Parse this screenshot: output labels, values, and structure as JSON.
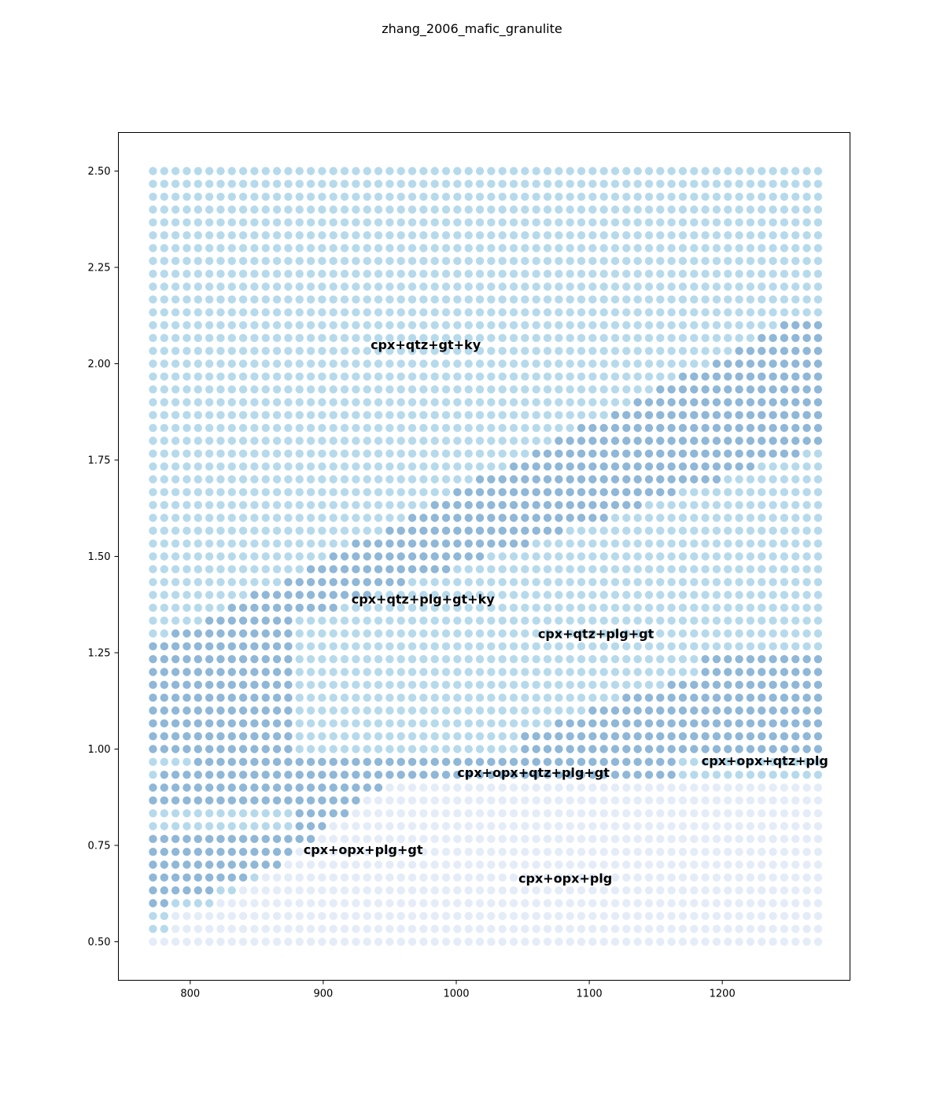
{
  "chart_data": {
    "type": "scatter",
    "title": "zhang_2006_mafic_granulite",
    "xlabel": "",
    "ylabel": "",
    "xlim": [
      746,
      1296
    ],
    "ylim": [
      0.4,
      2.6
    ],
    "x_ticks": [
      800,
      900,
      1000,
      1100,
      1200
    ],
    "x_tick_labels": [
      "800",
      "900",
      "1000",
      "1100",
      "1200"
    ],
    "y_ticks": [
      0.5,
      0.75,
      1.0,
      1.25,
      1.5,
      1.75,
      2.0,
      2.25,
      2.5
    ],
    "y_tick_labels": [
      "0.50",
      "0.75",
      "1.00",
      "1.25",
      "1.50",
      "1.75",
      "2.00",
      "2.25",
      "2.50"
    ],
    "grid": false,
    "grid_points": {
      "x_start": 772,
      "x_end": 1272,
      "x_count": 60,
      "y_start": 0.5,
      "y_end": 2.5,
      "y_count": 61
    },
    "colors": {
      "light": "#dbe6f5",
      "medium": "#9ecde6",
      "dark": "#6a9fcb"
    },
    "point_alpha": 0.75,
    "fields": [
      {
        "label": "cpx+qtz+gt+ky",
        "x": 977,
        "y": 2.05
      },
      {
        "label": "cpx+qtz+plg+gt+ky",
        "x": 975,
        "y": 1.39
      },
      {
        "label": "cpx+qtz+plg+gt",
        "x": 1105,
        "y": 1.3
      },
      {
        "label": "cpx+opx+qtz+plg",
        "x": 1232,
        "y": 0.97
      },
      {
        "label": "cpx+opx+qtz+plg+gt",
        "x": 1058,
        "y": 0.94
      },
      {
        "label": "cpx+opx+plg+gt",
        "x": 930,
        "y": 0.74
      },
      {
        "label": "cpx+opx+plg",
        "x": 1082,
        "y": 0.665
      }
    ]
  }
}
